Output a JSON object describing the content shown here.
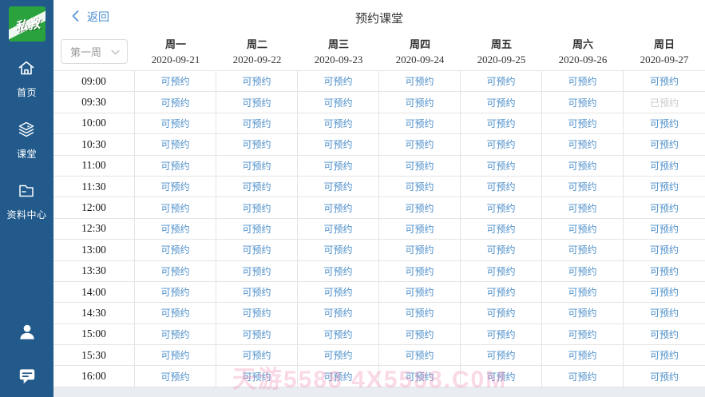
{
  "header": {
    "title": "预约课堂",
    "back_label": "返回"
  },
  "sidebar": {
    "logo_text": "私教",
    "items": [
      {
        "id": "home",
        "label": "首页"
      },
      {
        "id": "classroom",
        "label": "课堂"
      },
      {
        "id": "resources",
        "label": "资料中心"
      }
    ]
  },
  "week_selector": {
    "value": "第一周"
  },
  "schedule": {
    "days": [
      {
        "name": "周一",
        "date": "2020-09-21"
      },
      {
        "name": "周二",
        "date": "2020-09-22"
      },
      {
        "name": "周三",
        "date": "2020-09-23"
      },
      {
        "name": "周四",
        "date": "2020-09-24"
      },
      {
        "name": "周五",
        "date": "2020-09-25"
      },
      {
        "name": "周六",
        "date": "2020-09-26"
      },
      {
        "name": "周日",
        "date": "2020-09-27"
      }
    ],
    "times": [
      "09:00",
      "09:30",
      "10:00",
      "10:30",
      "11:00",
      "11:30",
      "12:00",
      "12:30",
      "13:00",
      "13:30",
      "14:00",
      "14:30",
      "15:00",
      "15:30",
      "16:00"
    ],
    "labels": {
      "available": "可预约",
      "booked": "已预约"
    },
    "booked_slots": [
      {
        "time": "09:30",
        "day": "周日"
      }
    ]
  },
  "watermark": {
    "text": "天游5588 4X5588.C0M"
  },
  "colors": {
    "sidebar_bg": "#215a8b",
    "logo_green": "#2aa33e",
    "accent_blue": "#4a8fd4",
    "available_text": "#4d8fca",
    "booked_text": "#c9c9c9",
    "border": "#e4e4e4",
    "bottom_strip": "#e9edf1"
  }
}
